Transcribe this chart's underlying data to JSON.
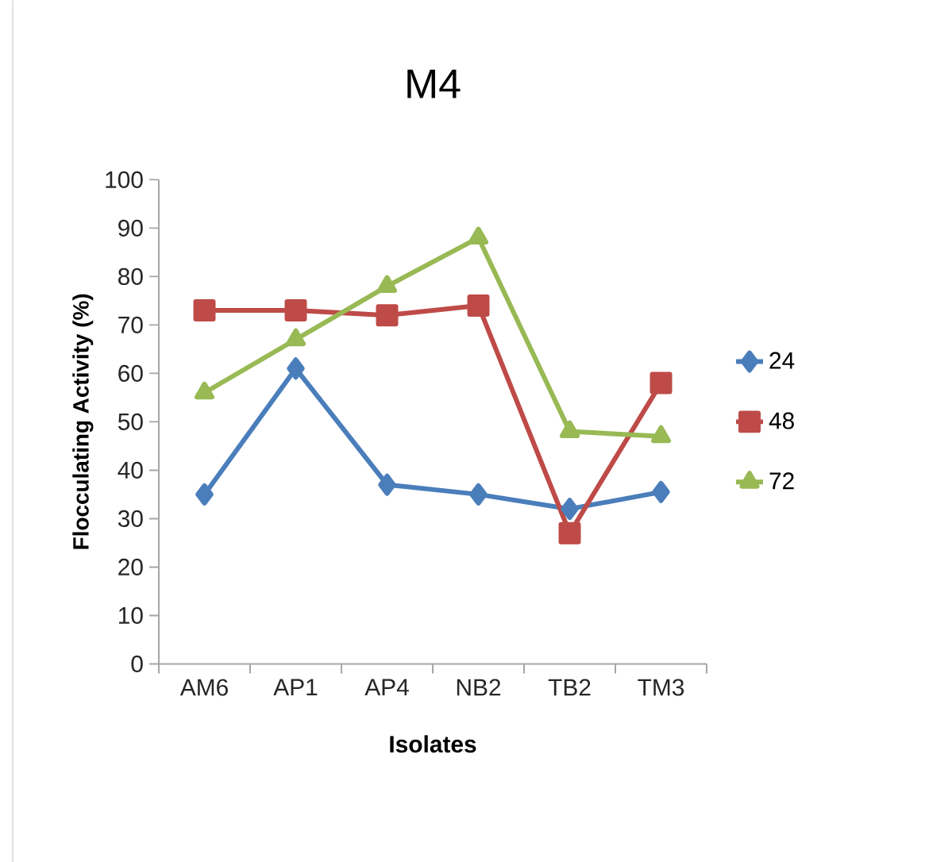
{
  "chart_data": {
    "type": "line",
    "title": "M4",
    "xlabel": "Isolates",
    "ylabel": "Flocculating Activity (%)",
    "categories": [
      "AM6",
      "AP1",
      "AP4",
      "NB2",
      "TB2",
      "TM3"
    ],
    "series": [
      {
        "name": "24",
        "color": "#4a7ebb",
        "marker": "diamond",
        "values": [
          35,
          61,
          37,
          35,
          32,
          35.5
        ]
      },
      {
        "name": "48",
        "color": "#be4b48",
        "marker": "square",
        "values": [
          73,
          73,
          72,
          74,
          27,
          58
        ]
      },
      {
        "name": "72",
        "color": "#98b954",
        "marker": "triangle",
        "values": [
          56,
          67,
          78,
          88,
          48,
          47
        ]
      }
    ],
    "ylim": [
      0,
      100
    ],
    "yticks": [
      0,
      10,
      20,
      30,
      40,
      50,
      60,
      70,
      80,
      90,
      100
    ],
    "grid": false,
    "legend": "right"
  }
}
